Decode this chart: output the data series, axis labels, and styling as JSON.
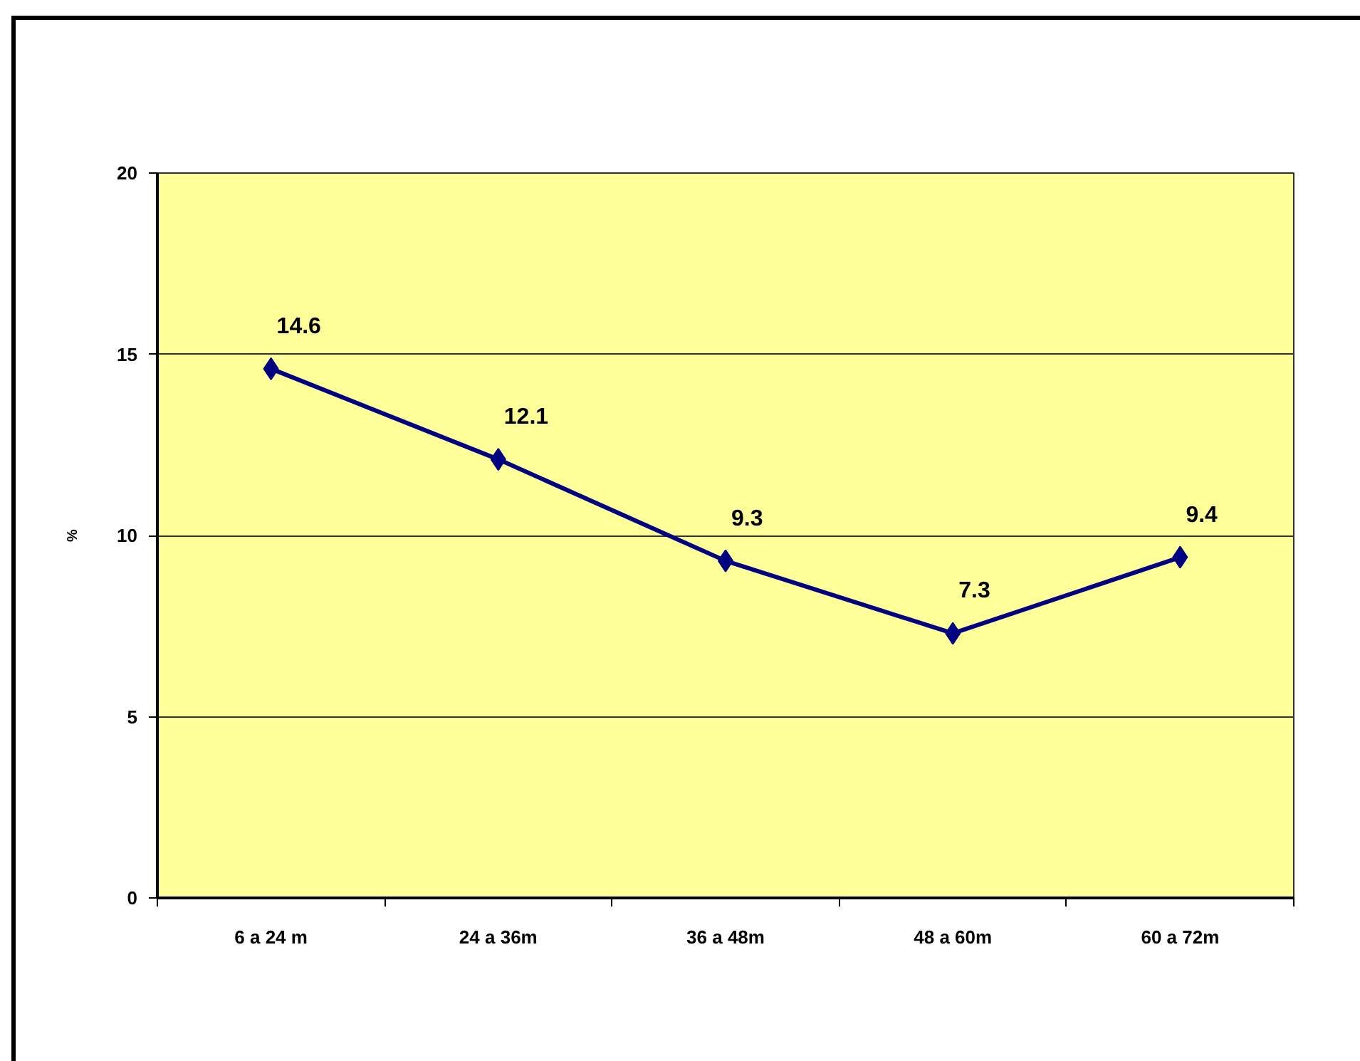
{
  "chart_data": {
    "type": "line",
    "ylabel": "%",
    "categories": [
      "6 a 24 m",
      "24 a 36m",
      "36 a 48m",
      "48 a 60m",
      "60 a 72m"
    ],
    "series": [
      {
        "color": "#000080",
        "values": [
          14.6,
          12.1,
          9.3,
          7.3,
          9.4
        ]
      }
    ],
    "ylim": [
      0,
      20
    ],
    "yticks": [
      0,
      5,
      10,
      15,
      20
    ],
    "grid": "y",
    "marker": "diamond",
    "line_style": "solid",
    "data_labels": true
  }
}
